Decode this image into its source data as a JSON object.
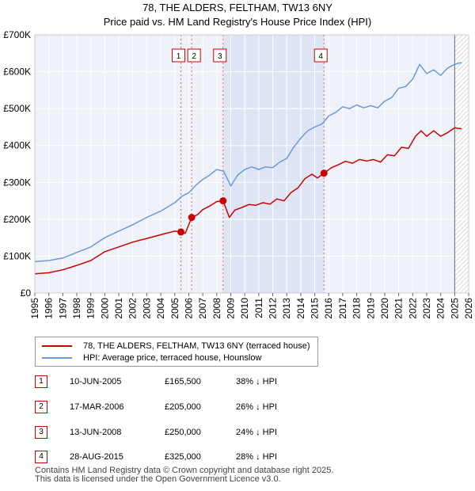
{
  "header": {
    "title": "78, THE ALDERS, FELTHAM, TW13 6NY",
    "subtitle": "Price paid vs. HM Land Registry's House Price Index (HPI)"
  },
  "chart_data": {
    "type": "line",
    "title": "78, THE ALDERS, FELTHAM, TW13 6NY",
    "subtitle": "Price paid vs. HM Land Registry's House Price Index (HPI)",
    "xlabel": "",
    "ylabel": "",
    "xlim": [
      1995,
      2026
    ],
    "ylim": [
      0,
      700000
    ],
    "grid": true,
    "y_ticks": [
      {
        "value": 0,
        "label": "£0"
      },
      {
        "value": 100000,
        "label": "£100K"
      },
      {
        "value": 200000,
        "label": "£200K"
      },
      {
        "value": 300000,
        "label": "£300K"
      },
      {
        "value": 400000,
        "label": "£400K"
      },
      {
        "value": 500000,
        "label": "£500K"
      },
      {
        "value": 600000,
        "label": "£600K"
      },
      {
        "value": 700000,
        "label": "£700K"
      }
    ],
    "x_ticks": [
      "1995",
      "1996",
      "1997",
      "1998",
      "1999",
      "2000",
      "2001",
      "2002",
      "2003",
      "2004",
      "2005",
      "2006",
      "2007",
      "2008",
      "2009",
      "2010",
      "2011",
      "2012",
      "2013",
      "2014",
      "2015",
      "2016",
      "2017",
      "2018",
      "2019",
      "2020",
      "2021",
      "2022",
      "2023",
      "2024",
      "2025",
      "2026"
    ],
    "highlight_range": [
      2008.45,
      2015.66
    ],
    "forecast_start": 2025.0,
    "series": [
      {
        "name": "78, THE ALDERS, FELTHAM, TW13 6NY (terraced house)",
        "color": "#cc0000",
        "x": [
          1995.0,
          1996.0,
          1997.0,
          1998.0,
          1999.0,
          2000.0,
          2001.0,
          2002.0,
          2003.0,
          2004.0,
          2005.0,
          2005.44,
          2005.75,
          2006.21,
          2006.6,
          2007.0,
          2007.5,
          2008.0,
          2008.45,
          2008.9,
          2009.3,
          2009.8,
          2010.3,
          2010.8,
          2011.3,
          2011.8,
          2012.3,
          2012.8,
          2013.3,
          2013.8,
          2014.3,
          2014.8,
          2015.2,
          2015.66,
          2016.2,
          2016.7,
          2017.2,
          2017.7,
          2018.2,
          2018.7,
          2019.2,
          2019.7,
          2020.2,
          2020.7,
          2021.2,
          2021.7,
          2022.2,
          2022.6,
          2023.0,
          2023.5,
          2024.0,
          2024.5,
          2025.0,
          2025.5
        ],
        "values": [
          52000,
          55000,
          63000,
          75000,
          88000,
          112000,
          125000,
          138000,
          148000,
          158000,
          168000,
          165500,
          162000,
          205000,
          212000,
          226000,
          236000,
          248000,
          250000,
          205000,
          225000,
          232000,
          240000,
          238000,
          245000,
          241000,
          255000,
          250000,
          272000,
          285000,
          310000,
          322000,
          312000,
          325000,
          340000,
          348000,
          357000,
          352000,
          362000,
          358000,
          362000,
          355000,
          375000,
          372000,
          395000,
          392000,
          425000,
          440000,
          425000,
          440000,
          425000,
          435000,
          448000,
          445000
        ]
      },
      {
        "name": "HPI: Average price, terraced house, Hounslow",
        "color": "#6a9bd8",
        "x": [
          1995.0,
          1996.0,
          1997.0,
          1998.0,
          1999.0,
          2000.0,
          2001.0,
          2002.0,
          2003.0,
          2004.0,
          2005.0,
          2005.5,
          2006.0,
          2006.5,
          2007.0,
          2007.5,
          2008.0,
          2008.5,
          2009.0,
          2009.5,
          2010.0,
          2010.5,
          2011.0,
          2011.5,
          2012.0,
          2012.5,
          2013.0,
          2013.5,
          2014.0,
          2014.5,
          2015.0,
          2015.5,
          2016.0,
          2016.5,
          2017.0,
          2017.5,
          2018.0,
          2018.5,
          2019.0,
          2019.5,
          2020.0,
          2020.5,
          2021.0,
          2021.5,
          2022.0,
          2022.5,
          2023.0,
          2023.5,
          2024.0,
          2024.5,
          2025.0,
          2025.5
        ],
        "values": [
          85000,
          88000,
          95000,
          110000,
          125000,
          150000,
          168000,
          185000,
          205000,
          222000,
          245000,
          262000,
          272000,
          292000,
          308000,
          320000,
          335000,
          330000,
          290000,
          320000,
          335000,
          342000,
          335000,
          342000,
          340000,
          355000,
          365000,
          395000,
          420000,
          440000,
          450000,
          458000,
          480000,
          490000,
          505000,
          500000,
          510000,
          502000,
          508000,
          502000,
          520000,
          530000,
          555000,
          560000,
          580000,
          620000,
          595000,
          605000,
          590000,
          610000,
          620000,
          625000
        ]
      }
    ],
    "sales": [
      {
        "id": "1",
        "x": 2005.44,
        "value": 165500
      },
      {
        "id": "2",
        "x": 2006.21,
        "value": 205000
      },
      {
        "id": "3",
        "x": 2008.45,
        "value": 250000
      },
      {
        "id": "4",
        "x": 2015.66,
        "value": 325000
      }
    ]
  },
  "legend": {
    "items": [
      {
        "label": "78, THE ALDERS, FELTHAM, TW13 6NY (terraced house)",
        "color": "#cc0000"
      },
      {
        "label": "HPI: Average price, terraced house, Hounslow",
        "color": "#6a9bd8"
      }
    ]
  },
  "sales_table": [
    {
      "id": "1",
      "date": "10-JUN-2005",
      "price": "£165,500",
      "delta": "38% ↓ HPI"
    },
    {
      "id": "2",
      "date": "17-MAR-2006",
      "price": "£205,000",
      "delta": "26% ↓ HPI"
    },
    {
      "id": "3",
      "date": "13-JUN-2008",
      "price": "£250,000",
      "delta": "24% ↓ HPI"
    },
    {
      "id": "4",
      "date": "28-AUG-2015",
      "price": "£325,000",
      "delta": "28% ↓ HPI"
    }
  ],
  "footer": {
    "line1": "Contains HM Land Registry data © Crown copyright and database right 2025.",
    "line2": "This data is licensed under the Open Government Licence v3.0."
  }
}
